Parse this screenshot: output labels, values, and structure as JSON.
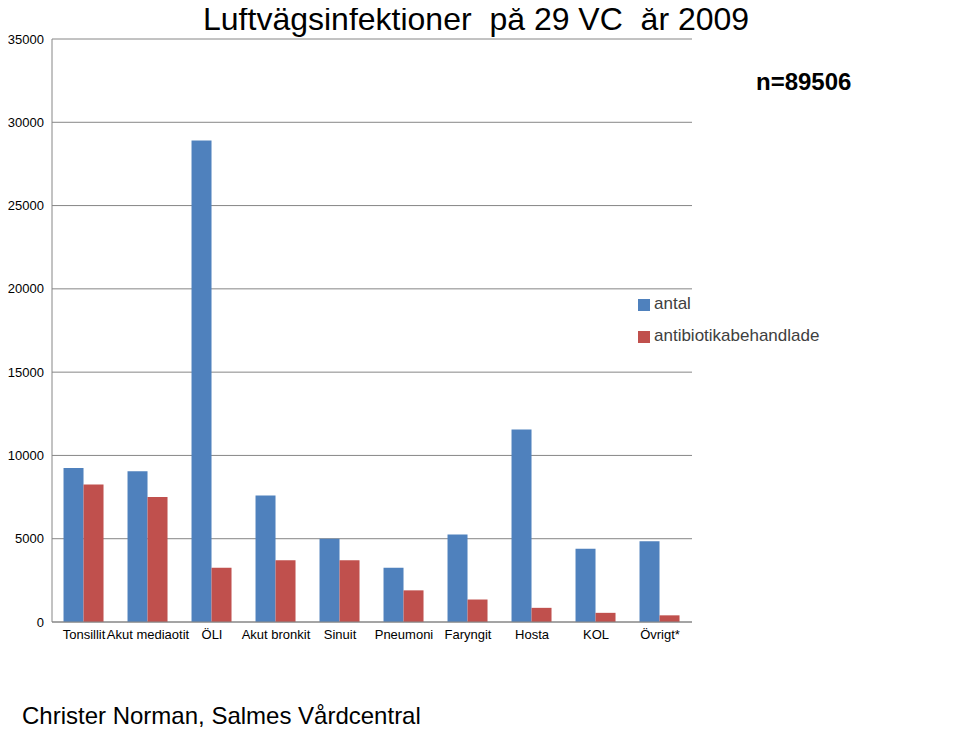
{
  "chart_data": {
    "type": "bar",
    "title": "Luftvägsinfektioner  på 29 VC  år 2009",
    "annotations": [
      "n=89506",
      "Christer Norman, Salmes Vårdcentral"
    ],
    "categories": [
      "Tonsillit",
      "Akut mediaotit",
      "ÖLI",
      "Akut bronkit",
      "Sinuit",
      "Pneumoni",
      "Faryngit",
      "Hosta",
      "KOL",
      "Övrigt*"
    ],
    "series": [
      {
        "name": "antal",
        "color": "#4f81bd",
        "values": [
          9250,
          9050,
          28900,
          7600,
          5000,
          3250,
          5250,
          11550,
          4400,
          4850
        ]
      },
      {
        "name": "antibiotikabehandlade",
        "color": "#c0504d",
        "values": [
          8250,
          7500,
          3250,
          3700,
          3700,
          1900,
          1350,
          850,
          550,
          400
        ]
      }
    ],
    "ylim": [
      0,
      35000
    ],
    "yticks": [
      0,
      5000,
      10000,
      15000,
      20000,
      25000,
      30000,
      35000
    ],
    "grid": true,
    "legend": "right"
  }
}
